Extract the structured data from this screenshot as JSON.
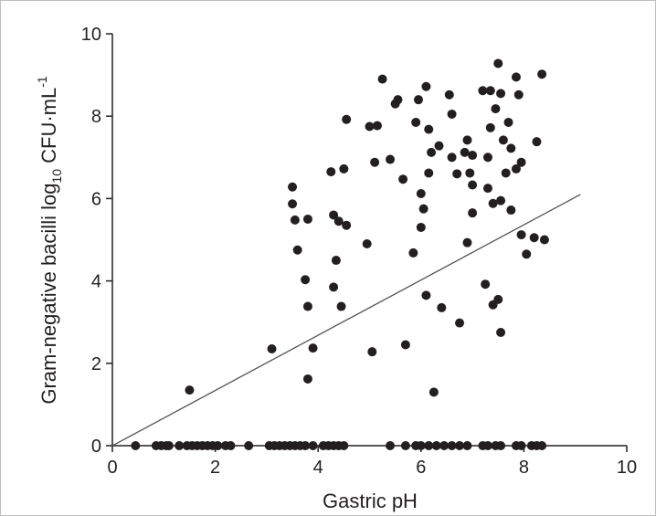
{
  "chart_data": {
    "type": "scatter",
    "xlabel": "Gastric pH",
    "ylabel_parts": {
      "a": "Gram-negative bacilli  log",
      "sub": "10",
      "b": " CFU·mL",
      "sup": "-1"
    },
    "xlim": [
      0,
      10
    ],
    "ylim": [
      0,
      10
    ],
    "x_ticks": [
      "0",
      "2",
      "4",
      "6",
      "8",
      "10"
    ],
    "y_ticks": [
      "0",
      "2",
      "4",
      "6",
      "8",
      "10"
    ],
    "grid": false,
    "marker_color": "#231f20",
    "line_color": "#555555",
    "regression_line": {
      "x": [
        0,
        9.1
      ],
      "y": [
        0,
        6.1
      ]
    },
    "points": [
      {
        "x": 0.45,
        "y": 0
      },
      {
        "x": 0.85,
        "y": 0
      },
      {
        "x": 0.95,
        "y": 0
      },
      {
        "x": 1.05,
        "y": 0
      },
      {
        "x": 1.1,
        "y": 0
      },
      {
        "x": 1.3,
        "y": 0
      },
      {
        "x": 1.45,
        "y": 0
      },
      {
        "x": 1.55,
        "y": 0
      },
      {
        "x": 1.65,
        "y": 0
      },
      {
        "x": 1.75,
        "y": 0
      },
      {
        "x": 1.85,
        "y": 0
      },
      {
        "x": 1.95,
        "y": 0
      },
      {
        "x": 2.05,
        "y": 0
      },
      {
        "x": 2.2,
        "y": 0
      },
      {
        "x": 2.3,
        "y": 0
      },
      {
        "x": 2.65,
        "y": 0
      },
      {
        "x": 3.05,
        "y": 0
      },
      {
        "x": 3.15,
        "y": 0
      },
      {
        "x": 3.25,
        "y": 0
      },
      {
        "x": 3.35,
        "y": 0
      },
      {
        "x": 3.45,
        "y": 0
      },
      {
        "x": 3.55,
        "y": 0
      },
      {
        "x": 3.65,
        "y": 0
      },
      {
        "x": 3.75,
        "y": 0
      },
      {
        "x": 3.9,
        "y": 0
      },
      {
        "x": 4.1,
        "y": 0
      },
      {
        "x": 4.2,
        "y": 0
      },
      {
        "x": 4.3,
        "y": 0
      },
      {
        "x": 4.4,
        "y": 0
      },
      {
        "x": 4.5,
        "y": 0
      },
      {
        "x": 5.4,
        "y": 0
      },
      {
        "x": 5.7,
        "y": 0
      },
      {
        "x": 5.9,
        "y": 0
      },
      {
        "x": 6.0,
        "y": 0
      },
      {
        "x": 6.15,
        "y": 0
      },
      {
        "x": 6.3,
        "y": 0
      },
      {
        "x": 6.45,
        "y": 0
      },
      {
        "x": 6.6,
        "y": 0
      },
      {
        "x": 6.75,
        "y": 0
      },
      {
        "x": 6.9,
        "y": 0
      },
      {
        "x": 7.2,
        "y": 0
      },
      {
        "x": 7.3,
        "y": 0
      },
      {
        "x": 7.45,
        "y": 0
      },
      {
        "x": 7.55,
        "y": 0
      },
      {
        "x": 7.85,
        "y": 0
      },
      {
        "x": 7.95,
        "y": 0
      },
      {
        "x": 8.15,
        "y": 0
      },
      {
        "x": 8.25,
        "y": 0
      },
      {
        "x": 8.35,
        "y": 0
      },
      {
        "x": 1.5,
        "y": 1.35
      },
      {
        "x": 3.1,
        "y": 2.35
      },
      {
        "x": 3.8,
        "y": 1.62
      },
      {
        "x": 3.9,
        "y": 2.37
      },
      {
        "x": 3.5,
        "y": 6.28
      },
      {
        "x": 3.5,
        "y": 5.87
      },
      {
        "x": 3.55,
        "y": 5.48
      },
      {
        "x": 3.6,
        "y": 4.75
      },
      {
        "x": 3.75,
        "y": 4.03
      },
      {
        "x": 3.8,
        "y": 3.38
      },
      {
        "x": 3.8,
        "y": 5.5
      },
      {
        "x": 4.25,
        "y": 6.65
      },
      {
        "x": 4.3,
        "y": 5.6
      },
      {
        "x": 4.3,
        "y": 3.85
      },
      {
        "x": 4.35,
        "y": 4.5
      },
      {
        "x": 4.4,
        "y": 5.45
      },
      {
        "x": 4.45,
        "y": 3.38
      },
      {
        "x": 4.5,
        "y": 6.72
      },
      {
        "x": 4.55,
        "y": 5.35
      },
      {
        "x": 4.55,
        "y": 7.92
      },
      {
        "x": 4.95,
        "y": 4.9
      },
      {
        "x": 5.0,
        "y": 7.75
      },
      {
        "x": 5.05,
        "y": 2.28
      },
      {
        "x": 5.1,
        "y": 6.88
      },
      {
        "x": 5.15,
        "y": 7.77
      },
      {
        "x": 5.25,
        "y": 8.9
      },
      {
        "x": 5.4,
        "y": 6.95
      },
      {
        "x": 5.5,
        "y": 8.3
      },
      {
        "x": 5.55,
        "y": 8.4
      },
      {
        "x": 5.65,
        "y": 6.47
      },
      {
        "x": 5.7,
        "y": 2.45
      },
      {
        "x": 5.85,
        "y": 4.68
      },
      {
        "x": 5.9,
        "y": 7.85
      },
      {
        "x": 5.95,
        "y": 8.4
      },
      {
        "x": 6.0,
        "y": 6.12
      },
      {
        "x": 6.0,
        "y": 5.3
      },
      {
        "x": 6.05,
        "y": 5.75
      },
      {
        "x": 6.1,
        "y": 3.65
      },
      {
        "x": 6.1,
        "y": 8.72
      },
      {
        "x": 6.15,
        "y": 7.68
      },
      {
        "x": 6.15,
        "y": 6.62
      },
      {
        "x": 6.2,
        "y": 7.12
      },
      {
        "x": 6.25,
        "y": 1.3
      },
      {
        "x": 6.35,
        "y": 7.28
      },
      {
        "x": 6.4,
        "y": 3.35
      },
      {
        "x": 6.55,
        "y": 8.52
      },
      {
        "x": 6.6,
        "y": 8.05
      },
      {
        "x": 6.6,
        "y": 7.0
      },
      {
        "x": 6.7,
        "y": 6.6
      },
      {
        "x": 6.75,
        "y": 2.98
      },
      {
        "x": 6.85,
        "y": 7.12
      },
      {
        "x": 6.9,
        "y": 4.93
      },
      {
        "x": 6.9,
        "y": 7.42
      },
      {
        "x": 6.95,
        "y": 6.62
      },
      {
        "x": 7.0,
        "y": 7.05
      },
      {
        "x": 7.0,
        "y": 5.65
      },
      {
        "x": 7.0,
        "y": 6.33
      },
      {
        "x": 7.2,
        "y": 8.62
      },
      {
        "x": 7.25,
        "y": 3.92
      },
      {
        "x": 7.3,
        "y": 7.0
      },
      {
        "x": 7.3,
        "y": 6.25
      },
      {
        "x": 7.35,
        "y": 7.72
      },
      {
        "x": 7.35,
        "y": 8.62
      },
      {
        "x": 7.4,
        "y": 5.88
      },
      {
        "x": 7.4,
        "y": 3.42
      },
      {
        "x": 7.45,
        "y": 8.18
      },
      {
        "x": 7.5,
        "y": 9.28
      },
      {
        "x": 7.5,
        "y": 3.55
      },
      {
        "x": 7.55,
        "y": 8.55
      },
      {
        "x": 7.55,
        "y": 5.95
      },
      {
        "x": 7.55,
        "y": 2.75
      },
      {
        "x": 7.6,
        "y": 7.42
      },
      {
        "x": 7.65,
        "y": 6.62
      },
      {
        "x": 7.7,
        "y": 7.85
      },
      {
        "x": 7.75,
        "y": 7.22
      },
      {
        "x": 7.75,
        "y": 5.72
      },
      {
        "x": 7.85,
        "y": 6.72
      },
      {
        "x": 7.85,
        "y": 8.95
      },
      {
        "x": 7.9,
        "y": 8.52
      },
      {
        "x": 7.95,
        "y": 6.88
      },
      {
        "x": 7.95,
        "y": 5.12
      },
      {
        "x": 8.05,
        "y": 4.65
      },
      {
        "x": 8.2,
        "y": 5.05
      },
      {
        "x": 8.25,
        "y": 7.38
      },
      {
        "x": 8.35,
        "y": 9.02
      },
      {
        "x": 8.4,
        "y": 5.0
      }
    ]
  }
}
